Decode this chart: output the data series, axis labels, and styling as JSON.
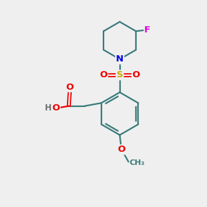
{
  "background_color": "#efefef",
  "bond_color": "#3a7a7a",
  "atom_colors": {
    "N": "#0000ee",
    "O": "#ee0000",
    "S": "#ccaa00",
    "F": "#dd00dd",
    "H": "#707070",
    "C": "#3a7a7a"
  },
  "figsize": [
    3.0,
    3.0
  ],
  "dpi": 100
}
